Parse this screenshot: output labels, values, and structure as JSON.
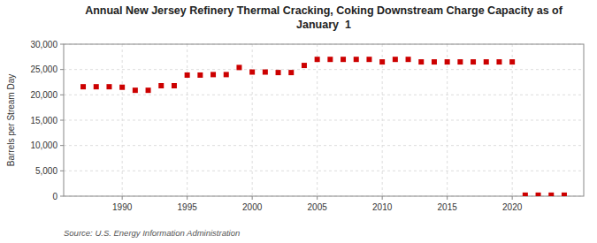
{
  "chart_data": {
    "type": "scatter",
    "title": "Annual New Jersey Refinery Thermal Cracking, Coking Downstream Charge Capacity as of\nJanuary  1",
    "ylabel": "Barrels per Stream Day",
    "source": "Source: U.S. Energy Information Administration",
    "x": [
      1987,
      1988,
      1989,
      1990,
      1991,
      1992,
      1993,
      1994,
      1995,
      1996,
      1997,
      1998,
      1999,
      2000,
      2001,
      2002,
      2003,
      2004,
      2005,
      2006,
      2007,
      2008,
      2009,
      2010,
      2011,
      2012,
      2013,
      2014,
      2015,
      2016,
      2017,
      2018,
      2019,
      2020,
      2021,
      2022,
      2023,
      2024
    ],
    "values": [
      21600,
      21600,
      21600,
      21500,
      20900,
      20900,
      21800,
      21800,
      23900,
      23900,
      24000,
      24000,
      25400,
      24500,
      24500,
      24400,
      24400,
      25800,
      27000,
      27000,
      27000,
      27000,
      27000,
      26500,
      27000,
      27000,
      26500,
      26500,
      26500,
      26500,
      26500,
      26500,
      26500,
      26500,
      200,
      200,
      200,
      200
    ],
    "color": "#cc0000",
    "marker": "square",
    "xlim": [
      1985.5,
      2025.5
    ],
    "xticks": [
      1990,
      1995,
      2000,
      2005,
      2010,
      2015,
      2020
    ],
    "ylim": [
      0,
      30000
    ],
    "yticks": [
      0,
      {
        "value": 5000,
        "label": "5,000"
      },
      {
        "value": 10000,
        "label": "10,000"
      },
      {
        "value": 15000,
        "label": "15,000"
      },
      {
        "value": 20000,
        "label": "20,000"
      },
      {
        "value": 25000,
        "label": "25,000"
      },
      {
        "value": 30000,
        "label": "30,000"
      }
    ],
    "grid": true
  }
}
